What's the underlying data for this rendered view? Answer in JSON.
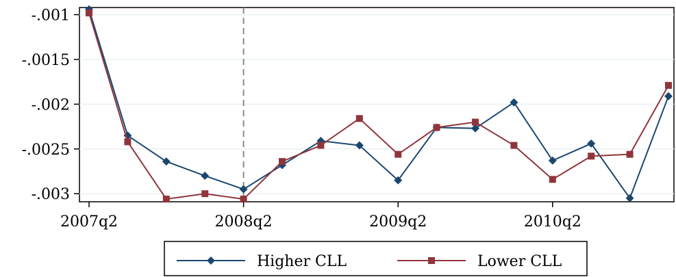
{
  "chart_data": {
    "type": "line",
    "x": [
      "2007q2",
      "2007q3",
      "2007q4",
      "2008q1",
      "2008q2",
      "2008q3",
      "2008q4",
      "2009q1",
      "2009q2",
      "2009q3",
      "2009q4",
      "2010q1",
      "2010q2",
      "2010q3",
      "2010q4",
      "2011q1"
    ],
    "x_tick_labels": [
      "2007q2",
      "2008q2",
      "2009q2",
      "2010q2"
    ],
    "y_tick_labels": [
      "-.001",
      "-.0015",
      "-.002",
      "-.0025",
      "-.003"
    ],
    "y_ticks": [
      -0.001,
      -0.0015,
      -0.002,
      -0.0025,
      -0.003
    ],
    "ylim": [
      -0.00309,
      -0.00092
    ],
    "vertical_reference_line": "2008q2",
    "grid": "horizontal",
    "legend_placement": "bottom",
    "series": [
      {
        "name": "Higher CLL",
        "marker": "diamond",
        "color": "#1a476f",
        "values": [
          -0.00094,
          -0.00235,
          -0.00264,
          -0.0028,
          -0.00295,
          -0.00268,
          -0.00241,
          -0.00246,
          -0.00285,
          -0.00226,
          -0.00227,
          -0.00198,
          -0.00263,
          -0.00244,
          -0.00305,
          -0.00191
        ]
      },
      {
        "name": "Lower CLL",
        "marker": "square",
        "color": "#90353b",
        "values": [
          -0.00098,
          -0.00242,
          -0.00306,
          -0.003,
          -0.00306,
          -0.00264,
          -0.00246,
          -0.00216,
          -0.00256,
          -0.00226,
          -0.0022,
          -0.00246,
          -0.00284,
          -0.00258,
          -0.00256,
          -0.00179
        ]
      }
    ]
  }
}
